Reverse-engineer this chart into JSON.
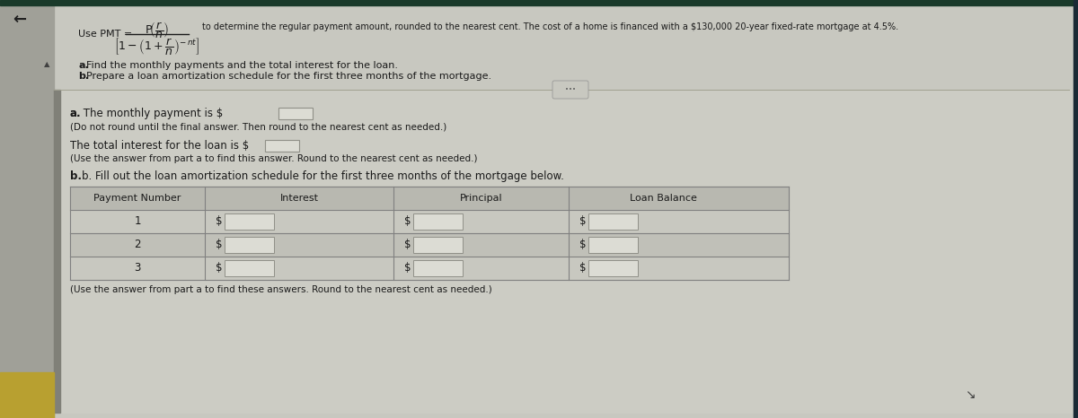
{
  "bg_color_top": "#c8c8c0",
  "bg_color_main": "#d0cfc8",
  "left_strip_color": "#a0a098",
  "left_accent_color": "#808078",
  "top_bar_color": "#1a3a2a",
  "answer_bg_color": "#ccccc4",
  "table_header_color": "#b8b8b0",
  "table_row1_color": "#c8c8c0",
  "table_row2_color": "#c0c0b8",
  "table_row3_color": "#c8c8c0",
  "input_box_color": "#dcdcd4",
  "input_box_edge": "#909088",
  "yellow_patch_color": "#b8a030",
  "back_arrow": "←",
  "formula_title": "Use PMT =",
  "problem_text": "to determine the regular payment amount, rounded to the nearest cent. The cost of a home is financed with a $130,000 20-year fixed-rate mortgage at 4.5%.",
  "part_a_label": "Find the monthly payments and the total interest for the loan.",
  "part_b_label": "Prepare a loan amortization schedule for the first three months of the mortgage.",
  "answer_a1_label": "a. The monthly payment is $",
  "answer_a1_note": "(Do not round until the final answer. Then round to the nearest cent as needed.)",
  "answer_a2_label": "The total interest for the loan is $",
  "answer_a2_note": "(Use the answer from part a to find this answer. Round to the nearest cent as needed.)",
  "part_b_fill_label": "b. Fill out the loan amortization schedule for the first three months of the mortgage below.",
  "table_headers": [
    "Payment Number",
    "Interest",
    "Principal",
    "Loan Balance"
  ],
  "table_rows": [
    "1",
    "2",
    "3"
  ],
  "table_note": "(Use the answer from part a to find these answers. Round to the nearest cent as needed.)"
}
